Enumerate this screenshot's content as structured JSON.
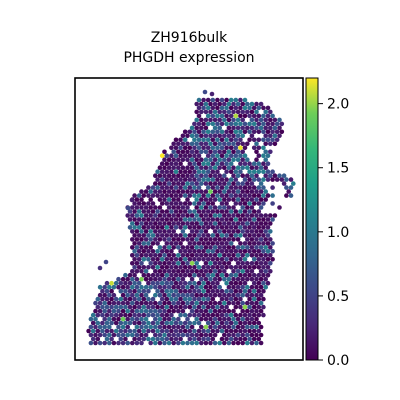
{
  "chart_data": {
    "type": "scatter",
    "title_line1": "ZH916bulk",
    "title_line2": "PHGDH expression",
    "xlabel": "",
    "ylabel": "",
    "grid": false,
    "colorscale": "viridis",
    "colorbar": {
      "range": [
        0.0,
        2.2
      ],
      "ticks": [
        0.0,
        0.5,
        1.0,
        1.5,
        2.0
      ],
      "tick_labels": [
        "0.0",
        "0.5",
        "1.0",
        "1.5",
        "2.0"
      ]
    }
  }
}
